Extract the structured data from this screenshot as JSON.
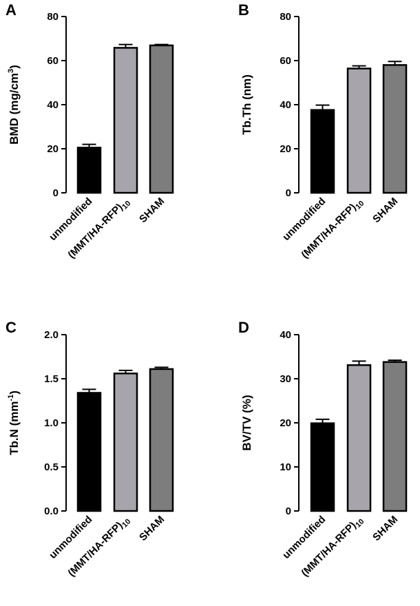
{
  "figure": {
    "panels": [
      "A",
      "B",
      "C",
      "D"
    ]
  },
  "chart_data": [
    {
      "panel": "A",
      "type": "bar",
      "categories": [
        "unmodified",
        "(MMT/HA-RFP)10",
        "SHAM"
      ],
      "category_labels": [
        {
          "main": "unmodified",
          "sub": ""
        },
        {
          "main": "(MMT/HA-RFP)",
          "sub": "10"
        },
        {
          "main": "SHAM",
          "sub": ""
        }
      ],
      "values": [
        20.5,
        65.8,
        66.9
      ],
      "errors": [
        1.5,
        1.5,
        0.4
      ],
      "bar_colors": [
        "#000000",
        "#a7a5ab",
        "#7d7d7d"
      ],
      "ylabel": {
        "main": "BMD (mg/cm",
        "sup": "3",
        "end": ")"
      },
      "ylim": [
        0,
        80
      ],
      "yticks": [
        0,
        20,
        40,
        60,
        80
      ],
      "tick_labels": [
        "0",
        "20",
        "40",
        "60",
        "80"
      ]
    },
    {
      "panel": "B",
      "type": "bar",
      "categories": [
        "unmodified",
        "(MMT/HA-RFP)10",
        "SHAM"
      ],
      "category_labels": [
        {
          "main": "unmodified",
          "sub": ""
        },
        {
          "main": "(MMT/HA-RFP)",
          "sub": "10"
        },
        {
          "main": "SHAM",
          "sub": ""
        }
      ],
      "values": [
        37.6,
        56.4,
        58.0
      ],
      "errors": [
        2.2,
        1.2,
        1.6
      ],
      "bar_colors": [
        "#000000",
        "#a7a5ab",
        "#7d7d7d"
      ],
      "ylabel": {
        "main": "Tb.Th (nm)",
        "sup": "",
        "end": ""
      },
      "ylim": [
        0,
        80
      ],
      "yticks": [
        0,
        20,
        40,
        60,
        80
      ],
      "tick_labels": [
        "0",
        "20",
        "40",
        "60",
        "80"
      ]
    },
    {
      "panel": "C",
      "type": "bar",
      "categories": [
        "unmodified",
        "(MMT/HA-RFP)10",
        "SHAM"
      ],
      "category_labels": [
        {
          "main": "unmodified",
          "sub": ""
        },
        {
          "main": "(MMT/HA-RFP)",
          "sub": "10"
        },
        {
          "main": "SHAM",
          "sub": ""
        }
      ],
      "values": [
        1.34,
        1.56,
        1.61
      ],
      "errors": [
        0.04,
        0.035,
        0.02
      ],
      "bar_colors": [
        "#000000",
        "#a7a5ab",
        "#7d7d7d"
      ],
      "ylabel": {
        "main": "Tb.N (mm",
        "sup": "-1",
        "end": ")"
      },
      "ylim": [
        0,
        2.0
      ],
      "yticks": [
        0,
        0.5,
        1.0,
        1.5,
        2.0
      ],
      "tick_labels": [
        "0.0",
        "0.5",
        "1.0",
        "1.5",
        "2.0"
      ]
    },
    {
      "panel": "D",
      "type": "bar",
      "categories": [
        "unmodified",
        "(MMT/HA-RFP)10",
        "SHAM"
      ],
      "category_labels": [
        {
          "main": "unmodified",
          "sub": ""
        },
        {
          "main": "(MMT/HA-RFP)",
          "sub": "10"
        },
        {
          "main": "SHAM",
          "sub": ""
        }
      ],
      "values": [
        19.9,
        33.1,
        33.8
      ],
      "errors": [
        0.9,
        0.9,
        0.4
      ],
      "bar_colors": [
        "#000000",
        "#a7a5ab",
        "#7d7d7d"
      ],
      "ylabel": {
        "main": "BV/TV (%)",
        "sup": "",
        "end": ""
      },
      "ylim": [
        0,
        40
      ],
      "yticks": [
        0,
        10,
        20,
        30,
        40
      ],
      "tick_labels": [
        "0",
        "10",
        "20",
        "30",
        "40"
      ]
    }
  ]
}
